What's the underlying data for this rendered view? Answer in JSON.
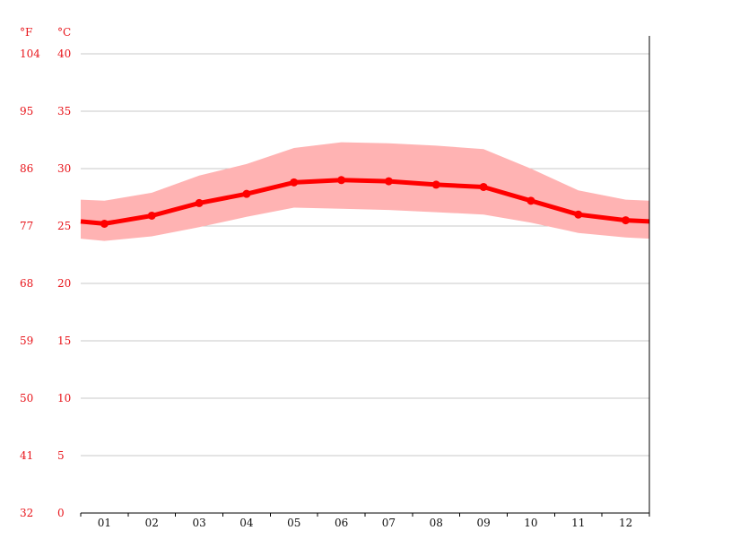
{
  "chart_data": {
    "type": "area",
    "units": {
      "fahrenheit": "°F",
      "celsius": "°C"
    },
    "categories": [
      "01",
      "02",
      "03",
      "04",
      "05",
      "06",
      "07",
      "08",
      "09",
      "10",
      "11",
      "12"
    ],
    "series": [
      {
        "values": [
          25.2,
          25.9,
          27.0,
          27.8,
          28.8,
          29.0,
          28.9,
          28.6,
          28.4,
          27.2,
          26.0,
          25.5
        ]
      },
      {
        "values": [
          27.2,
          27.9,
          29.4,
          30.4,
          31.8,
          32.3,
          32.2,
          32.0,
          31.7,
          30.0,
          28.1,
          27.3
        ]
      },
      {
        "values": [
          23.7,
          24.1,
          24.9,
          25.8,
          26.6,
          26.5,
          26.4,
          26.2,
          26.0,
          25.3,
          24.4,
          24.0
        ]
      }
    ],
    "series_edges": {
      "left": [
        25.4,
        27.3,
        23.9
      ],
      "right": [
        25.4,
        27.2,
        23.9
      ]
    },
    "yticks_c": [
      "0",
      "5",
      "10",
      "15",
      "20",
      "25",
      "30",
      "35",
      "40"
    ],
    "yticks_f": [
      "32",
      "41",
      "50",
      "59",
      "68",
      "77",
      "86",
      "95",
      "104"
    ],
    "ylim": [
      0,
      40
    ],
    "grid": true,
    "colors": {
      "line": "#ff0000",
      "band": "#ffb3b3",
      "ticks": "#e8151b",
      "grid": "#c8c8c8"
    }
  }
}
